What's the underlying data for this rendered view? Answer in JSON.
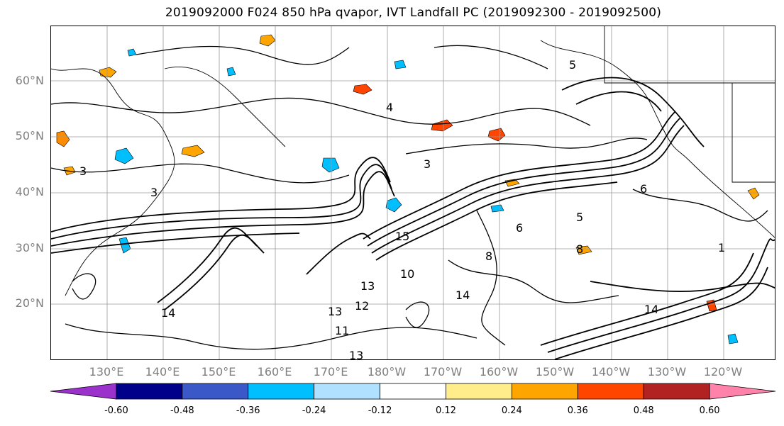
{
  "title": "2019092000 F024 850 hPa qvapor, IVT Landfall PC (2019092300 - 2019092500)",
  "map": {
    "lat_labels": [
      "60°N",
      "50°N",
      "40°N",
      "30°N",
      "20°N"
    ],
    "lon_labels": [
      "130°E",
      "140°E",
      "150°E",
      "160°E",
      "170°E",
      "180°W",
      "170°W",
      "160°W",
      "150°W",
      "140°W",
      "130°W",
      "120°W"
    ],
    "contour_labels": [
      "3",
      "3",
      "3",
      "4",
      "5",
      "5",
      "6",
      "6",
      "8",
      "8",
      "10",
      "13",
      "13",
      "13",
      "14",
      "14",
      "14",
      "11",
      "12",
      "15",
      "1"
    ],
    "gridline_color": "#9a9a9a",
    "coastline_color": "#000000",
    "contour_color": "#000000"
  },
  "colorbar": {
    "colors": [
      "#9b32cc",
      "#00008b",
      "#3a58c8",
      "#00bfff",
      "#b0e2ff",
      "#ffffff",
      "#ffec8b",
      "#ffa500",
      "#ff4500",
      "#b22222",
      "#ff82ab"
    ],
    "tick_labels": [
      "-0.60",
      "-0.48",
      "-0.36",
      "-0.24",
      "-0.12",
      "0.12",
      "0.24",
      "0.36",
      "0.48",
      "0.60"
    ]
  }
}
